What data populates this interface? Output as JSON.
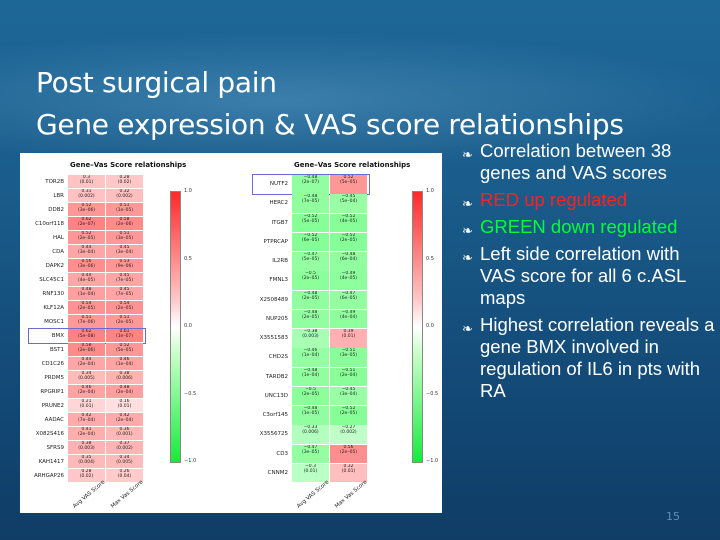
{
  "title": {
    "line1": "Post surgical pain",
    "line2": "Gene expression & VAS score relationships"
  },
  "bullets": [
    {
      "text": "Correlation between 38 genes and VAS scores",
      "style": "normal"
    },
    {
      "text": "RED up regulated",
      "style": "red"
    },
    {
      "text": "GREEN down regulated",
      "style": "green"
    },
    {
      "text": "Left side correlation with VAS score for all 6 c.ASL maps",
      "style": "normal"
    },
    {
      "text": "Highest correlation reveals a gene BMX involved in regulation of IL6 in pts with RA",
      "style": "normal"
    }
  ],
  "page_number": "15",
  "colors": {
    "background": "#1a5c8b",
    "red_text": "#ff2020",
    "green_text": "#00ff33"
  },
  "icon": "bullet-swirl-icon",
  "chart_data": [
    {
      "type": "heatmap",
      "title": "Gene–Vas Score relationships",
      "columns": [
        "Avg VAS Score",
        "Max Vas Score"
      ],
      "highlighted_row": "BMX",
      "rows": [
        {
          "gene": "TOR2B",
          "cells": [
            [
              "0.3",
              "(0.01)"
            ],
            [
              "0.28",
              "(0.02)"
            ]
          ]
        },
        {
          "gene": "LBR",
          "cells": [
            [
              "0.31",
              "(0.002)"
            ],
            [
              "0.32",
              "(0.002)"
            ]
          ]
        },
        {
          "gene": "DDB2",
          "cells": [
            [
              "0.52",
              "(3e–06)"
            ],
            [
              "0.51",
              "(1e–05)"
            ]
          ]
        },
        {
          "gene": "C10orf118",
          "cells": [
            [
              "0.62",
              "(2e–07)"
            ],
            [
              "0.58",
              "(2e–06)"
            ]
          ]
        },
        {
          "gene": "HAL",
          "cells": [
            [
              "0.52",
              "(2e–05)"
            ],
            [
              "0.51",
              "(3e–05)"
            ]
          ]
        },
        {
          "gene": "CDA",
          "cells": [
            [
              "0.44",
              "(3e–04)"
            ],
            [
              "0.45",
              "(3e–04)"
            ]
          ]
        },
        {
          "gene": "DAPK2",
          "cells": [
            [
              "0.56",
              "(3e–06)"
            ],
            [
              "0.53",
              "(9e–06)"
            ]
          ]
        },
        {
          "gene": "SLC45C1",
          "cells": [
            [
              "0.44",
              "(4e–05)"
            ],
            [
              "0.45",
              "(7e–05)"
            ]
          ]
        },
        {
          "gene": "RNF130",
          "cells": [
            [
              "0.48",
              "(1e–04)"
            ],
            [
              "0.45",
              "(7e–05)"
            ]
          ]
        },
        {
          "gene": "KLF12A",
          "cells": [
            [
              "0.54",
              "(2e–05)"
            ],
            [
              "0.54",
              "(2e–05)"
            ]
          ]
        },
        {
          "gene": "MOSC1",
          "cells": [
            [
              "0.51",
              "(7e–06)"
            ],
            [
              "0.51",
              "(2e–05)"
            ]
          ]
        },
        {
          "gene": "BMX",
          "cells": [
            [
              "0.62",
              "(5e–08)"
            ],
            [
              "0.61",
              "(1e–07)"
            ]
          ]
        },
        {
          "gene": "BST1",
          "cells": [
            [
              "0.58",
              "(2e–06)"
            ],
            [
              "0.52",
              "(5e–05)"
            ]
          ]
        },
        {
          "gene": "CD1C26",
          "cells": [
            [
              "0.44",
              "(2e–04)"
            ],
            [
              "0.46",
              "(1e–04)"
            ]
          ]
        },
        {
          "gene": "PRDM5",
          "cells": [
            [
              "0.34",
              "(0.005)"
            ],
            [
              "0.38",
              "(0.006)"
            ]
          ]
        },
        {
          "gene": "RPGRIP1",
          "cells": [
            [
              "0.46",
              "(2e–04)"
            ],
            [
              "0.48",
              "(2e–04)"
            ]
          ]
        },
        {
          "gene": "PRUNE2",
          "cells": [
            [
              "0.21",
              "(0.01)"
            ],
            [
              "0.16",
              "(0.01)"
            ]
          ]
        },
        {
          "gene": "AADAC",
          "cells": [
            [
              "0.42",
              "(7e–04)"
            ],
            [
              "0.42",
              "(2e–04)"
            ]
          ]
        },
        {
          "gene": "X082S416",
          "cells": [
            [
              "0.41",
              "(2e–04)"
            ],
            [
              "0.36",
              "(0.001)"
            ]
          ]
        },
        {
          "gene": "SFRS9",
          "cells": [
            [
              "0.38",
              "(0.003)"
            ],
            [
              "0.37",
              "(0.002)"
            ]
          ]
        },
        {
          "gene": "KAH1417",
          "cells": [
            [
              "0.35",
              "(0.004)"
            ],
            [
              "0.34",
              "(0.005)"
            ]
          ]
        },
        {
          "gene": "ARHGAP26",
          "cells": [
            [
              "0.28",
              "(0.02)"
            ],
            [
              "0.26",
              "(0.04)"
            ]
          ]
        }
      ],
      "colorbar_ticks": [
        "1.0",
        "0.5",
        "0.0",
        "−0.5",
        "−1.0"
      ]
    },
    {
      "type": "heatmap",
      "title": "Gene–Vas Score relationships",
      "columns": [
        "Avg VAS Score",
        "Max Vas Score"
      ],
      "highlighted_row": "NUTF2",
      "rows": [
        {
          "gene": "NUTF2",
          "cells": [
            [
              "−0.48",
              "(2e–07)"
            ],
            [
              "0.52",
              "(5e–05)"
            ]
          ]
        },
        {
          "gene": "HERC2",
          "cells": [
            [
              "−0.48",
              "(7e–05)"
            ],
            [
              "−0.45",
              "(5e–04)"
            ]
          ]
        },
        {
          "gene": "ITGB7",
          "cells": [
            [
              "−0.52",
              "(5e–05)"
            ],
            [
              "−0.52",
              "(4e–05)"
            ]
          ]
        },
        {
          "gene": "PTPRCAP",
          "cells": [
            [
              "−0.52",
              "(6e–05)"
            ],
            [
              "−0.52",
              "(2e–05)"
            ]
          ]
        },
        {
          "gene": "IL2RB",
          "cells": [
            [
              "−0.47",
              "(5e–05)"
            ],
            [
              "−0.48",
              "(6e–04)"
            ]
          ]
        },
        {
          "gene": "FMNL3",
          "cells": [
            [
              "−0.5",
              "(2e–05)"
            ],
            [
              "−0.49",
              "(4e–05)"
            ]
          ]
        },
        {
          "gene": "X2508489",
          "cells": [
            [
              "−0.48",
              "(2e–05)"
            ],
            [
              "−0.47",
              "(6e–05)"
            ]
          ]
        },
        {
          "gene": "NUP205",
          "cells": [
            [
              "−0.48",
              "(2e–05)"
            ],
            [
              "−0.49",
              "(4e–04)"
            ]
          ]
        },
        {
          "gene": "X3551583",
          "cells": [
            [
              "−0.38",
              "(0.003)"
            ],
            [
              "0.39",
              "(0.01)"
            ]
          ]
        },
        {
          "gene": "CHD2S",
          "cells": [
            [
              "−0.46",
              "(1e–04)"
            ],
            [
              "−0.51",
              "(3e–05)"
            ]
          ]
        },
        {
          "gene": "TARDB2",
          "cells": [
            [
              "−0.48",
              "(1e–04)"
            ],
            [
              "−0.51",
              "(2e–04)"
            ]
          ]
        },
        {
          "gene": "UNC13D",
          "cells": [
            [
              "−0.5",
              "(2e–05)"
            ],
            [
              "−0.45",
              "(3e–04)"
            ]
          ]
        },
        {
          "gene": "C3orf145",
          "cells": [
            [
              "−0.48",
              "(1e–05)"
            ],
            [
              "−0.52",
              "(2e–05)"
            ]
          ]
        },
        {
          "gene": "X3556725",
          "cells": [
            [
              "−0.33",
              "(0.006)"
            ],
            [
              "−0.27",
              "(0.002)"
            ]
          ]
        },
        {
          "gene": "CD3",
          "cells": [
            [
              "−0.47",
              "(3e–05)"
            ],
            [
              "0.56",
              "(2e–05)"
            ]
          ]
        },
        {
          "gene": "CNNM2",
          "cells": [
            [
              "−0.3",
              "(0.01)"
            ],
            [
              "0.32",
              "(0.01)"
            ]
          ]
        }
      ],
      "colorbar_ticks": [
        "1.0",
        "0.5",
        "0.0",
        "−0.5",
        "−1.0"
      ]
    }
  ]
}
